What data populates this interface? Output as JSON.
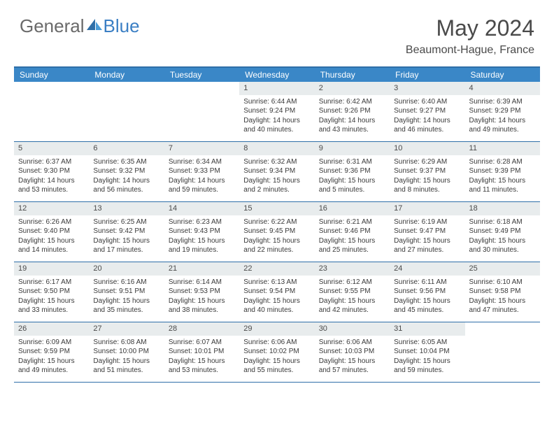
{
  "brand": {
    "general": "General",
    "blue": "Blue"
  },
  "title": "May 2024",
  "location": "Beaumont-Hague, France",
  "colors": {
    "header_bg": "#3a87c7",
    "border": "#2f6fa8",
    "daynum_bg": "#e8eced",
    "text": "#3a3a3a",
    "logo_gray": "#6a6a6a",
    "logo_blue": "#3b7fc4"
  },
  "day_headers": [
    "Sunday",
    "Monday",
    "Tuesday",
    "Wednesday",
    "Thursday",
    "Friday",
    "Saturday"
  ],
  "weeks": [
    [
      null,
      null,
      null,
      {
        "n": "1",
        "sr": "6:44 AM",
        "ss": "9:24 PM",
        "d1": "Daylight: 14 hours",
        "d2": "and 40 minutes."
      },
      {
        "n": "2",
        "sr": "6:42 AM",
        "ss": "9:26 PM",
        "d1": "Daylight: 14 hours",
        "d2": "and 43 minutes."
      },
      {
        "n": "3",
        "sr": "6:40 AM",
        "ss": "9:27 PM",
        "d1": "Daylight: 14 hours",
        "d2": "and 46 minutes."
      },
      {
        "n": "4",
        "sr": "6:39 AM",
        "ss": "9:29 PM",
        "d1": "Daylight: 14 hours",
        "d2": "and 49 minutes."
      }
    ],
    [
      {
        "n": "5",
        "sr": "6:37 AM",
        "ss": "9:30 PM",
        "d1": "Daylight: 14 hours",
        "d2": "and 53 minutes."
      },
      {
        "n": "6",
        "sr": "6:35 AM",
        "ss": "9:32 PM",
        "d1": "Daylight: 14 hours",
        "d2": "and 56 minutes."
      },
      {
        "n": "7",
        "sr": "6:34 AM",
        "ss": "9:33 PM",
        "d1": "Daylight: 14 hours",
        "d2": "and 59 minutes."
      },
      {
        "n": "8",
        "sr": "6:32 AM",
        "ss": "9:34 PM",
        "d1": "Daylight: 15 hours",
        "d2": "and 2 minutes."
      },
      {
        "n": "9",
        "sr": "6:31 AM",
        "ss": "9:36 PM",
        "d1": "Daylight: 15 hours",
        "d2": "and 5 minutes."
      },
      {
        "n": "10",
        "sr": "6:29 AM",
        "ss": "9:37 PM",
        "d1": "Daylight: 15 hours",
        "d2": "and 8 minutes."
      },
      {
        "n": "11",
        "sr": "6:28 AM",
        "ss": "9:39 PM",
        "d1": "Daylight: 15 hours",
        "d2": "and 11 minutes."
      }
    ],
    [
      {
        "n": "12",
        "sr": "6:26 AM",
        "ss": "9:40 PM",
        "d1": "Daylight: 15 hours",
        "d2": "and 14 minutes."
      },
      {
        "n": "13",
        "sr": "6:25 AM",
        "ss": "9:42 PM",
        "d1": "Daylight: 15 hours",
        "d2": "and 17 minutes."
      },
      {
        "n": "14",
        "sr": "6:23 AM",
        "ss": "9:43 PM",
        "d1": "Daylight: 15 hours",
        "d2": "and 19 minutes."
      },
      {
        "n": "15",
        "sr": "6:22 AM",
        "ss": "9:45 PM",
        "d1": "Daylight: 15 hours",
        "d2": "and 22 minutes."
      },
      {
        "n": "16",
        "sr": "6:21 AM",
        "ss": "9:46 PM",
        "d1": "Daylight: 15 hours",
        "d2": "and 25 minutes."
      },
      {
        "n": "17",
        "sr": "6:19 AM",
        "ss": "9:47 PM",
        "d1": "Daylight: 15 hours",
        "d2": "and 27 minutes."
      },
      {
        "n": "18",
        "sr": "6:18 AM",
        "ss": "9:49 PM",
        "d1": "Daylight: 15 hours",
        "d2": "and 30 minutes."
      }
    ],
    [
      {
        "n": "19",
        "sr": "6:17 AM",
        "ss": "9:50 PM",
        "d1": "Daylight: 15 hours",
        "d2": "and 33 minutes."
      },
      {
        "n": "20",
        "sr": "6:16 AM",
        "ss": "9:51 PM",
        "d1": "Daylight: 15 hours",
        "d2": "and 35 minutes."
      },
      {
        "n": "21",
        "sr": "6:14 AM",
        "ss": "9:53 PM",
        "d1": "Daylight: 15 hours",
        "d2": "and 38 minutes."
      },
      {
        "n": "22",
        "sr": "6:13 AM",
        "ss": "9:54 PM",
        "d1": "Daylight: 15 hours",
        "d2": "and 40 minutes."
      },
      {
        "n": "23",
        "sr": "6:12 AM",
        "ss": "9:55 PM",
        "d1": "Daylight: 15 hours",
        "d2": "and 42 minutes."
      },
      {
        "n": "24",
        "sr": "6:11 AM",
        "ss": "9:56 PM",
        "d1": "Daylight: 15 hours",
        "d2": "and 45 minutes."
      },
      {
        "n": "25",
        "sr": "6:10 AM",
        "ss": "9:58 PM",
        "d1": "Daylight: 15 hours",
        "d2": "and 47 minutes."
      }
    ],
    [
      {
        "n": "26",
        "sr": "6:09 AM",
        "ss": "9:59 PM",
        "d1": "Daylight: 15 hours",
        "d2": "and 49 minutes."
      },
      {
        "n": "27",
        "sr": "6:08 AM",
        "ss": "10:00 PM",
        "d1": "Daylight: 15 hours",
        "d2": "and 51 minutes."
      },
      {
        "n": "28",
        "sr": "6:07 AM",
        "ss": "10:01 PM",
        "d1": "Daylight: 15 hours",
        "d2": "and 53 minutes."
      },
      {
        "n": "29",
        "sr": "6:06 AM",
        "ss": "10:02 PM",
        "d1": "Daylight: 15 hours",
        "d2": "and 55 minutes."
      },
      {
        "n": "30",
        "sr": "6:06 AM",
        "ss": "10:03 PM",
        "d1": "Daylight: 15 hours",
        "d2": "and 57 minutes."
      },
      {
        "n": "31",
        "sr": "6:05 AM",
        "ss": "10:04 PM",
        "d1": "Daylight: 15 hours",
        "d2": "and 59 minutes."
      },
      null
    ]
  ]
}
